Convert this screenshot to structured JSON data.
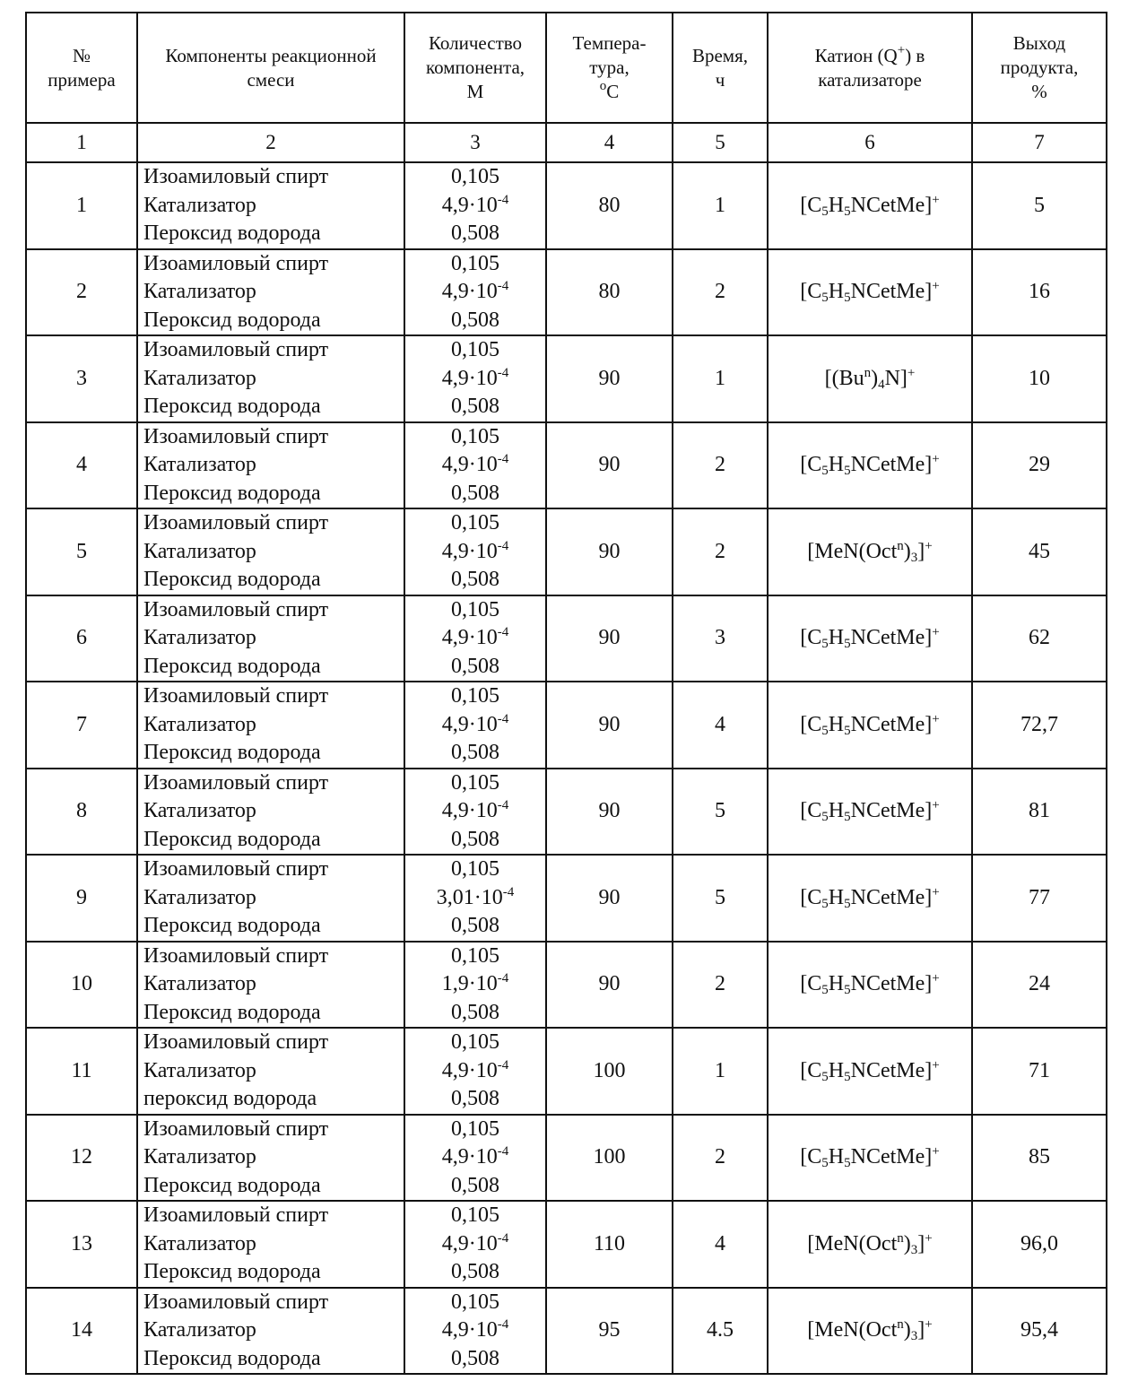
{
  "table": {
    "header": [
      [
        "№",
        "примера"
      ],
      [
        "Компоненты реакционной",
        "смеси"
      ],
      [
        "Количество",
        "компонента,",
        "М"
      ],
      [
        "Темпера-",
        "тура,",
        [
          {
            "sup": "o"
          },
          {
            "t": "C"
          }
        ]
      ],
      [
        "Время,",
        "ч"
      ],
      [
        [
          {
            "t": "Катион (Q"
          },
          {
            "sup": "+"
          },
          {
            "t": ") в"
          }
        ],
        "катализаторе"
      ],
      [
        "Выход",
        "продукта,",
        "%"
      ]
    ],
    "numbers": [
      "1",
      "2",
      "3",
      "4",
      "5",
      "6",
      "7"
    ],
    "rows": [
      {
        "no": "1",
        "components": [
          "Изоамиловый спирт",
          "Катализатор",
          "Пероксид водорода"
        ],
        "amounts": [
          "0,105",
          [
            {
              "t": "4,9·10"
            },
            {
              "sup": "-4"
            }
          ],
          "0,508"
        ],
        "temperature": "80",
        "time": "1",
        "cation": [
          {
            "t": "[C"
          },
          {
            "sub": "5"
          },
          {
            "t": "H"
          },
          {
            "sub": "5"
          },
          {
            "t": "NCetMe]"
          },
          {
            "sup": "+"
          }
        ],
        "yield": "5"
      },
      {
        "no": "2",
        "components": [
          "Изоамиловый спирт",
          "Катализатор",
          "Пероксид водорода"
        ],
        "amounts": [
          "0,105",
          [
            {
              "t": "4,9·10"
            },
            {
              "sup": "-4"
            }
          ],
          "0,508"
        ],
        "temperature": "80",
        "time": "2",
        "cation": [
          {
            "t": "[C"
          },
          {
            "sub": "5"
          },
          {
            "t": "H"
          },
          {
            "sub": "5"
          },
          {
            "t": "NCetMe]"
          },
          {
            "sup": "+"
          }
        ],
        "yield": "16"
      },
      {
        "no": "3",
        "components": [
          "Изоамиловый спирт",
          "Катализатор",
          "Пероксид водорода"
        ],
        "amounts": [
          "0,105",
          [
            {
              "t": "4,9·10"
            },
            {
              "sup": "-4"
            }
          ],
          "0,508"
        ],
        "temperature": "90",
        "time": "1",
        "cation": [
          {
            "t": "[(Bu"
          },
          {
            "sup": "n"
          },
          {
            "t": ")"
          },
          {
            "sub": "4"
          },
          {
            "t": "N]"
          },
          {
            "sup": "+"
          }
        ],
        "yield": "10"
      },
      {
        "no": "4",
        "components": [
          "Изоамиловый спирт",
          "Катализатор",
          "Пероксид водорода"
        ],
        "amounts": [
          "0,105",
          [
            {
              "t": "4,9·10"
            },
            {
              "sup": "-4"
            }
          ],
          "0,508"
        ],
        "temperature": "90",
        "time": "2",
        "cation": [
          {
            "t": "[C"
          },
          {
            "sub": "5"
          },
          {
            "t": "H"
          },
          {
            "sub": "5"
          },
          {
            "t": "NCetMe]"
          },
          {
            "sup": "+"
          }
        ],
        "yield": "29"
      },
      {
        "no": "5",
        "components": [
          "Изоамиловый спирт",
          "Катализатор",
          "Пероксид водорода"
        ],
        "amounts": [
          "0,105",
          [
            {
              "t": "4,9·10"
            },
            {
              "sup": "-4"
            }
          ],
          "0,508"
        ],
        "temperature": "90",
        "time": "2",
        "cation": [
          {
            "t": "[MeN(Oct"
          },
          {
            "sup": "n"
          },
          {
            "t": ")"
          },
          {
            "sub": "3"
          },
          {
            "t": "]"
          },
          {
            "sup": "+"
          }
        ],
        "yield": "45"
      },
      {
        "no": "6",
        "components": [
          "Изоамиловый спирт",
          "Катализатор",
          "Пероксид водорода"
        ],
        "amounts": [
          "0,105",
          [
            {
              "t": "4,9·10"
            },
            {
              "sup": "-4"
            }
          ],
          "0,508"
        ],
        "temperature": "90",
        "time": "3",
        "cation": [
          {
            "t": "[C"
          },
          {
            "sub": "5"
          },
          {
            "t": "H"
          },
          {
            "sub": "5"
          },
          {
            "t": "NCetMe]"
          },
          {
            "sup": "+"
          }
        ],
        "yield": "62"
      },
      {
        "no": "7",
        "components": [
          "Изоамиловый спирт",
          "Катализатор",
          "Пероксид водорода"
        ],
        "amounts": [
          "0,105",
          [
            {
              "t": "4,9·10"
            },
            {
              "sup": "-4"
            }
          ],
          "0,508"
        ],
        "temperature": "90",
        "time": "4",
        "cation": [
          {
            "t": "[C"
          },
          {
            "sub": "5"
          },
          {
            "t": "H"
          },
          {
            "sub": "5"
          },
          {
            "t": "NCetMe]"
          },
          {
            "sup": "+"
          }
        ],
        "yield": "72,7"
      },
      {
        "no": "8",
        "components": [
          "Изоамиловый спирт",
          "Катализатор",
          "Пероксид водорода"
        ],
        "amounts": [
          "0,105",
          [
            {
              "t": "4,9·10"
            },
            {
              "sup": "-4"
            }
          ],
          "0,508"
        ],
        "temperature": "90",
        "time": "5",
        "cation": [
          {
            "t": "[C"
          },
          {
            "sub": "5"
          },
          {
            "t": "H"
          },
          {
            "sub": "5"
          },
          {
            "t": "NCetMe]"
          },
          {
            "sup": "+"
          }
        ],
        "yield": "81"
      },
      {
        "no": "9",
        "components": [
          "Изоамиловый спирт",
          "Катализатор",
          "Пероксид водорода"
        ],
        "amounts": [
          "0,105",
          [
            {
              "t": "3,01·10"
            },
            {
              "sup": "-4"
            }
          ],
          "0,508"
        ],
        "temperature": "90",
        "time": "5",
        "cation": [
          {
            "t": "[C"
          },
          {
            "sub": "5"
          },
          {
            "t": "H"
          },
          {
            "sub": "5"
          },
          {
            "t": "NCetMe]"
          },
          {
            "sup": "+"
          }
        ],
        "yield": "77"
      },
      {
        "no": "10",
        "components": [
          "Изоамиловый спирт",
          "Катализатор",
          "Пероксид водорода"
        ],
        "amounts": [
          "0,105",
          [
            {
              "t": "1,9·10"
            },
            {
              "sup": "-4"
            }
          ],
          "0,508"
        ],
        "temperature": "90",
        "time": "2",
        "cation": [
          {
            "t": "[C"
          },
          {
            "sub": "5"
          },
          {
            "t": "H"
          },
          {
            "sub": "5"
          },
          {
            "t": "NCetMe]"
          },
          {
            "sup": "+"
          }
        ],
        "yield": "24"
      },
      {
        "no": "11",
        "components": [
          "Изоамиловый спирт",
          "Катализатор",
          "пероксид водорода"
        ],
        "amounts": [
          "0,105",
          [
            {
              "t": "4,9·10"
            },
            {
              "sup": "-4"
            }
          ],
          "0,508"
        ],
        "temperature": "100",
        "time": "1",
        "cation": [
          {
            "t": "[C"
          },
          {
            "sub": "5"
          },
          {
            "t": "H"
          },
          {
            "sub": "5"
          },
          {
            "t": "NCetMe]"
          },
          {
            "sup": "+"
          }
        ],
        "yield": "71"
      },
      {
        "no": "12",
        "components": [
          "Изоамиловый спирт",
          "Катализатор",
          "Пероксид водорода"
        ],
        "amounts": [
          "0,105",
          [
            {
              "t": "4,9·10"
            },
            {
              "sup": "-4"
            }
          ],
          "0,508"
        ],
        "temperature": "100",
        "time": "2",
        "cation": [
          {
            "t": "[C"
          },
          {
            "sub": "5"
          },
          {
            "t": "H"
          },
          {
            "sub": "5"
          },
          {
            "t": "NCetMe]"
          },
          {
            "sup": "+"
          }
        ],
        "yield": "85"
      },
      {
        "no": "13",
        "components": [
          "Изоамиловый спирт",
          "Катализатор",
          "Пероксид водорода"
        ],
        "amounts": [
          "0,105",
          [
            {
              "t": "4,9·10"
            },
            {
              "sup": "-4"
            }
          ],
          "0,508"
        ],
        "temperature": "110",
        "time": "4",
        "cation": [
          {
            "t": "[MeN(Oct"
          },
          {
            "sup": "n"
          },
          {
            "t": ")"
          },
          {
            "sub": "3"
          },
          {
            "t": "]"
          },
          {
            "sup": "+"
          }
        ],
        "yield": "96,0"
      },
      {
        "no": "14",
        "components": [
          "Изоамиловый спирт",
          "Катализатор",
          "Пероксид водорода"
        ],
        "amounts": [
          "0,105",
          [
            {
              "t": "4,9·10"
            },
            {
              "sup": "-4"
            }
          ],
          "0,508"
        ],
        "temperature": "95",
        "time": "4.5",
        "cation": [
          {
            "t": "[MeN(Oct"
          },
          {
            "sup": "n"
          },
          {
            "t": ")"
          },
          {
            "sub": "3"
          },
          {
            "t": "]"
          },
          {
            "sup": "+"
          }
        ],
        "yield": "95,4"
      }
    ]
  }
}
